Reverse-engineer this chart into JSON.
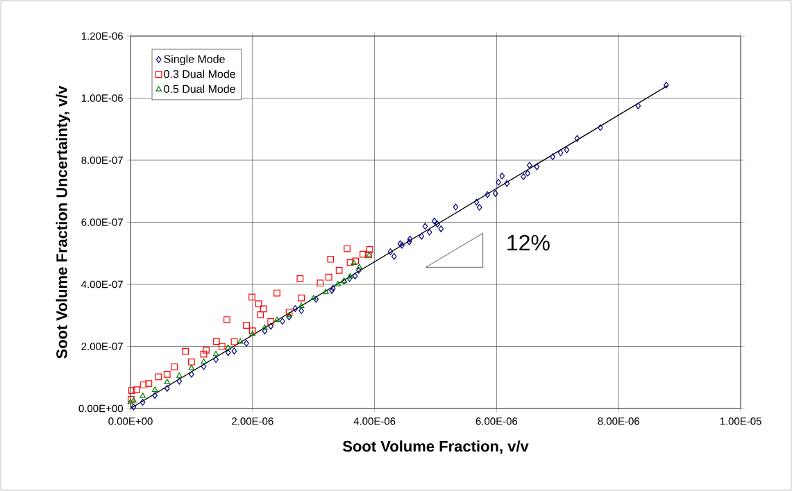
{
  "chart_data": {
    "type": "scatter",
    "xlabel": "Soot Volume Fraction, v/v",
    "ylabel": "Soot Volume Fraction Uncertainty, v/v",
    "annotations": [
      "12%"
    ],
    "xlim": [
      0,
      1e-05
    ],
    "ylim": [
      0,
      1.2e-06
    ],
    "xticks": [
      {
        "value": 0,
        "label": "0.00E+00"
      },
      {
        "value": 2e-06,
        "label": "2.00E-06"
      },
      {
        "value": 4e-06,
        "label": "4.00E-06"
      },
      {
        "value": 6e-06,
        "label": "6.00E-06"
      },
      {
        "value": 8e-06,
        "label": "8.00E-06"
      },
      {
        "value": 1e-05,
        "label": "1.00E-05"
      }
    ],
    "yticks": [
      {
        "value": 0,
        "label": "0.00E+00"
      },
      {
        "value": 2e-07,
        "label": "2.00E-07"
      },
      {
        "value": 4e-07,
        "label": "4.00E-07"
      },
      {
        "value": 6e-07,
        "label": "6.00E-07"
      },
      {
        "value": 8e-07,
        "label": "8.00E-07"
      },
      {
        "value": 1e-06,
        "label": "1.00E-06"
      },
      {
        "value": 1.2e-06,
        "label": "1.20E-06"
      }
    ],
    "grid": true,
    "legend": "top left",
    "series": [
      {
        "name": "Single Mode",
        "color": "#000080",
        "marker": "diamond",
        "x": [
          5e-08,
          2e-07,
          4e-07,
          6e-07,
          8e-07,
          1e-06,
          1.2e-06,
          1.4e-06,
          1.6e-06,
          1.7e-06,
          1.9e-06,
          2.2e-06,
          2.3e-06,
          2.49e-06,
          2.6e-06,
          2.7e-06,
          2.8e-06,
          3.04e-06,
          3.3e-06,
          3.32e-06,
          3.5e-06,
          3.59e-06,
          3.68e-06,
          3.74e-06,
          4.26e-06,
          4.32e-06,
          4.42e-06,
          4.45e-06,
          4.57e-06,
          4.58e-06,
          4.77e-06,
          4.83e-06,
          4.9e-06,
          4.98e-06,
          5.03e-06,
          5.09e-06,
          5.33e-06,
          5.67e-06,
          5.72e-06,
          5.85e-06,
          5.98e-06,
          6.03e-06,
          6.09e-06,
          6.17e-06,
          6.44e-06,
          6.51e-06,
          6.54e-06,
          6.66e-06,
          6.92e-06,
          7.05e-06,
          7.15e-06,
          7.32e-06,
          7.7e-06,
          8.32e-06,
          8.78e-06
        ],
        "values": [
          5e-09,
          2e-08,
          4.2e-08,
          6.5e-08,
          8.8e-08,
          1.1e-07,
          1.35e-07,
          1.58e-07,
          1.8e-07,
          1.85e-07,
          2.1e-07,
          2.5e-07,
          2.65e-07,
          2.81e-07,
          2.95e-07,
          3.22e-07,
          3.15e-07,
          3.52e-07,
          3.8e-07,
          3.87e-07,
          4.1e-07,
          4.19e-07,
          4.27e-07,
          4.45e-07,
          5.05e-07,
          4.9e-07,
          5.31e-07,
          5.26e-07,
          5.37e-07,
          5.46e-07,
          5.55e-07,
          5.87e-07,
          5.68e-07,
          6.04e-07,
          5.94e-07,
          5.79e-07,
          6.49e-07,
          6.65e-07,
          6.48e-07,
          6.89e-07,
          6.93e-07,
          7.29e-07,
          7.49e-07,
          7.25e-07,
          7.47e-07,
          7.58e-07,
          7.84e-07,
          7.79e-07,
          8.11e-07,
          8.24e-07,
          8.33e-07,
          8.7e-07,
          9.05e-07,
          9.75e-07,
          1.042e-06
        ]
      },
      {
        "name": "0.3 Dual Mode",
        "color": "#ff0000",
        "marker": "square",
        "x": [
          1e-08,
          2e-08,
          1e-07,
          2.1e-07,
          3e-07,
          4.6e-07,
          6e-07,
          7.2e-07,
          9e-07,
          1e-06,
          1.2e-06,
          1.24e-06,
          1.41e-06,
          1.5e-06,
          1.58e-06,
          1.7e-06,
          1.9e-06,
          1.99e-06,
          2e-06,
          2.1e-06,
          2.13e-06,
          2.18e-06,
          2.3e-06,
          2.4e-06,
          2.6e-06,
          2.78e-06,
          2.8e-06,
          3.11e-06,
          3.25e-06,
          3.28e-06,
          3.42e-06,
          3.55e-06,
          3.6e-06,
          3.69e-06,
          3.81e-06,
          3.9e-06,
          3.92e-06
        ],
        "values": [
          3e-08,
          5.8e-08,
          6e-08,
          7.6e-08,
          8e-08,
          1.02e-07,
          1.1e-07,
          1.34e-07,
          1.84e-07,
          1.5e-07,
          1.75e-07,
          1.88e-07,
          2.16e-07,
          2e-07,
          2.86e-07,
          2.15e-07,
          2.68e-07,
          3.59e-07,
          2.5e-07,
          3.37e-07,
          3.02e-07,
          3.21e-07,
          2.8e-07,
          3.72e-07,
          3.1e-07,
          4.18e-07,
          3.56e-07,
          4.04e-07,
          4.23e-07,
          4.81e-07,
          4.45e-07,
          5.15e-07,
          4.7e-07,
          4.75e-07,
          4.97e-07,
          4.95e-07,
          5.12e-07
        ]
      },
      {
        "name": "0.5 Dual Mode",
        "color": "#008000",
        "marker": "triangle",
        "x": [
          0,
          5e-08,
          2e-07,
          4e-07,
          6e-07,
          8e-07,
          1e-06,
          1.2e-06,
          1.4e-06,
          1.6e-06,
          1.8e-06,
          2e-06,
          2.2e-06,
          2.4e-06,
          2.6e-06,
          2.8e-06,
          3e-06,
          3.2e-06,
          3.4e-06,
          3.5e-06,
          3.6e-06,
          3.66e-06,
          3.75e-06,
          3.91e-06
        ],
        "values": [
          2e-08,
          2.5e-08,
          4e-08,
          6e-08,
          8.5e-08,
          1.05e-07,
          1.3e-07,
          1.5e-07,
          1.75e-07,
          1.95e-07,
          2.15e-07,
          2.4e-07,
          2.6e-07,
          2.85e-07,
          3e-07,
          3.3e-07,
          3.55e-07,
          3.75e-07,
          4e-07,
          4.1e-07,
          4.25e-07,
          4.68e-07,
          4.55e-07,
          4.94e-07
        ]
      },
      {
        "type": "line",
        "color": "#000000",
        "marker": "none",
        "x": [
          0,
          8.8e-06
        ],
        "values": [
          0,
          1.04e-06
        ]
      }
    ]
  }
}
